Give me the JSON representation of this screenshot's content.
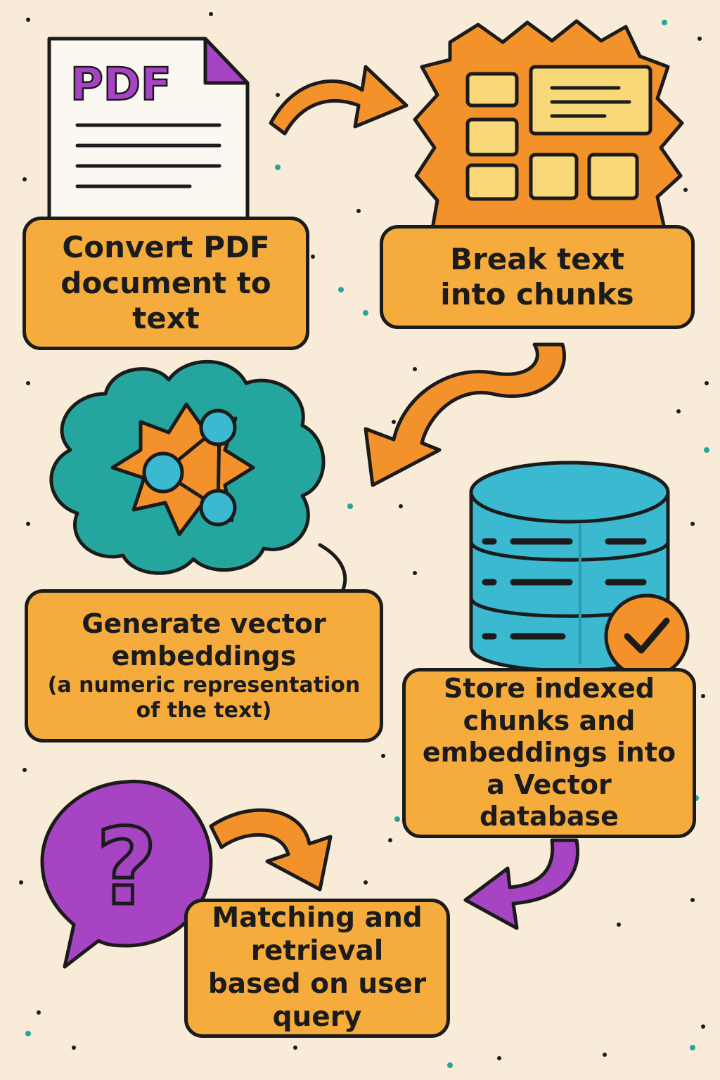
{
  "doc_icon": {
    "label": "PDF",
    "icon": "pdf-document-icon"
  },
  "steps": [
    {
      "text": "Convert PDF document to text",
      "icon": "pdf-document-icon"
    },
    {
      "text": "Break text into chunks",
      "icon": "chunks-icon"
    },
    {
      "text": "Generate vector embeddings",
      "sub": "(a numeric representation of the text)",
      "icon": "embedding-cloud-icon"
    },
    {
      "text": "Store indexed chunks and embeddings into a Vector database",
      "icon": "database-icon"
    },
    {
      "text": "Matching and retrieval based on user query",
      "icon": "question-bubble-icon"
    }
  ],
  "colors": {
    "background": "#f8ecd8",
    "box": "#f5ac3c",
    "orange": "#f3922a",
    "teal": "#24a59e",
    "cyan": "#3ab9d0",
    "purple": "#a744c4",
    "yellow": "#f8d878",
    "outline": "#1b1b1b"
  }
}
